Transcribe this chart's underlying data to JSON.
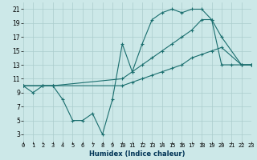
{
  "xlabel": "Humidex (Indice chaleur)",
  "bg_color": "#cce8e8",
  "grid_color": "#aacccc",
  "line_color": "#1a6e6e",
  "xlim": [
    0,
    23
  ],
  "ylim": [
    2,
    22
  ],
  "yticks": [
    3,
    5,
    7,
    9,
    11,
    13,
    15,
    17,
    19,
    21
  ],
  "xticks": [
    0,
    1,
    2,
    3,
    4,
    5,
    6,
    7,
    8,
    9,
    10,
    11,
    12,
    13,
    14,
    15,
    16,
    17,
    18,
    19,
    20,
    21,
    22,
    23
  ],
  "line1_x": [
    0,
    1,
    2,
    3,
    4,
    5,
    6,
    7,
    8,
    9,
    10,
    11,
    12,
    13,
    14,
    15,
    16,
    17,
    18,
    19,
    20,
    21,
    22,
    23
  ],
  "line1_y": [
    10,
    9,
    10,
    10,
    8,
    5,
    5,
    6,
    3,
    8,
    16,
    12,
    16,
    19.5,
    20.5,
    21,
    20.5,
    21,
    21,
    19.5,
    13,
    13,
    13,
    13
  ],
  "line2_x": [
    0,
    2,
    3,
    10,
    11,
    12,
    13,
    14,
    15,
    16,
    17,
    18,
    19,
    20,
    22,
    23
  ],
  "line2_y": [
    10,
    10,
    10,
    11,
    12,
    13,
    14,
    15,
    16,
    17,
    18,
    19.5,
    19.5,
    17,
    13,
    13
  ],
  "line3_x": [
    0,
    2,
    3,
    10,
    11,
    12,
    13,
    14,
    15,
    16,
    17,
    18,
    19,
    20,
    22,
    23
  ],
  "line3_y": [
    10,
    10,
    10,
    10,
    10.5,
    11,
    11.5,
    12,
    12.5,
    13,
    14,
    14.5,
    15,
    15.5,
    13,
    13
  ],
  "marker_size": 3.5,
  "linewidth": 0.8,
  "xlabel_fontsize": 6,
  "tick_fontsize": 5
}
